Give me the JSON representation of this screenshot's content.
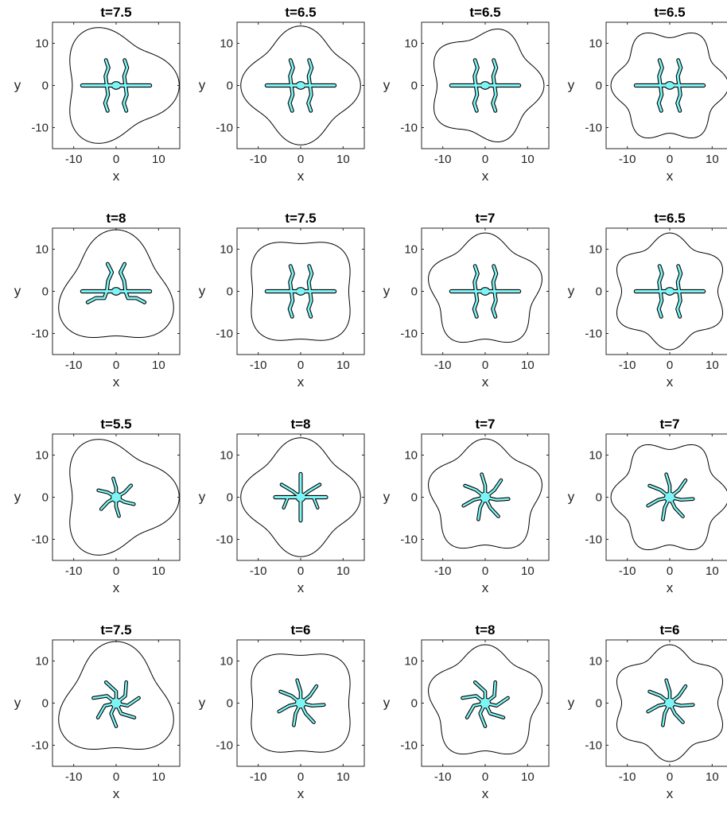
{
  "chart_data": {
    "type": "line",
    "layout": "4x4 grid of panels",
    "xlim": [
      -15,
      15
    ],
    "ylim": [
      -15,
      15
    ],
    "xticks": [
      -10,
      0,
      10
    ],
    "yticks": [
      -10,
      0,
      10
    ],
    "xlabel": "x",
    "ylabel": "y",
    "grid": false,
    "colors": {
      "outer_boundary": "#000000",
      "fill": "#7ef5f5",
      "edge": "#000000"
    },
    "panels": [
      {
        "title": "t=7.5",
        "outer_lobes": 3,
        "outer_amplitude": 0.18,
        "outer_phase_deg": 0,
        "inner_shape": "two-arm-x"
      },
      {
        "title": "t=6.5",
        "outer_lobes": 4,
        "outer_amplitude": 0.12,
        "outer_phase_deg": 0,
        "inner_shape": "two-arm-x"
      },
      {
        "title": "t=6.5",
        "outer_lobes": 5,
        "outer_amplitude": 0.1,
        "outer_phase_deg": 0,
        "inner_shape": "two-arm-x"
      },
      {
        "title": "t=6.5",
        "outer_lobes": 6,
        "outer_amplitude": 0.1,
        "outer_phase_deg": 0,
        "inner_shape": "two-arm-x"
      },
      {
        "title": "t=8",
        "outer_lobes": 3,
        "outer_amplitude": 0.16,
        "outer_phase_deg": 90,
        "inner_shape": "two-arm-curved"
      },
      {
        "title": "t=7.5",
        "outer_lobes": 4,
        "outer_amplitude": 0.1,
        "outer_phase_deg": 45,
        "inner_shape": "two-arm-x"
      },
      {
        "title": "t=7",
        "outer_lobes": 5,
        "outer_amplitude": 0.1,
        "outer_phase_deg": 90,
        "inner_shape": "two-arm-x"
      },
      {
        "title": "t=6.5",
        "outer_lobes": 6,
        "outer_amplitude": 0.1,
        "outer_phase_deg": 90,
        "inner_shape": "two-arm-x"
      },
      {
        "title": "t=5.5",
        "outer_lobes": 3,
        "outer_amplitude": 0.18,
        "outer_phase_deg": 0,
        "inner_shape": "star-small"
      },
      {
        "title": "t=8",
        "outer_lobes": 4,
        "outer_amplitude": 0.12,
        "outer_phase_deg": 0,
        "inner_shape": "cross"
      },
      {
        "title": "t=7",
        "outer_lobes": 5,
        "outer_amplitude": 0.1,
        "outer_phase_deg": 90,
        "inner_shape": "star"
      },
      {
        "title": "t=7",
        "outer_lobes": 6,
        "outer_amplitude": 0.1,
        "outer_phase_deg": 0,
        "inner_shape": "star"
      },
      {
        "title": "t=7.5",
        "outer_lobes": 3,
        "outer_amplitude": 0.16,
        "outer_phase_deg": 90,
        "inner_shape": "star-curved"
      },
      {
        "title": "t=6",
        "outer_lobes": 4,
        "outer_amplitude": 0.1,
        "outer_phase_deg": 45,
        "inner_shape": "star"
      },
      {
        "title": "t=8",
        "outer_lobes": 5,
        "outer_amplitude": 0.1,
        "outer_phase_deg": 90,
        "inner_shape": "star-curved"
      },
      {
        "title": "t=6",
        "outer_lobes": 6,
        "outer_amplitude": 0.1,
        "outer_phase_deg": 90,
        "inner_shape": "star"
      }
    ]
  }
}
